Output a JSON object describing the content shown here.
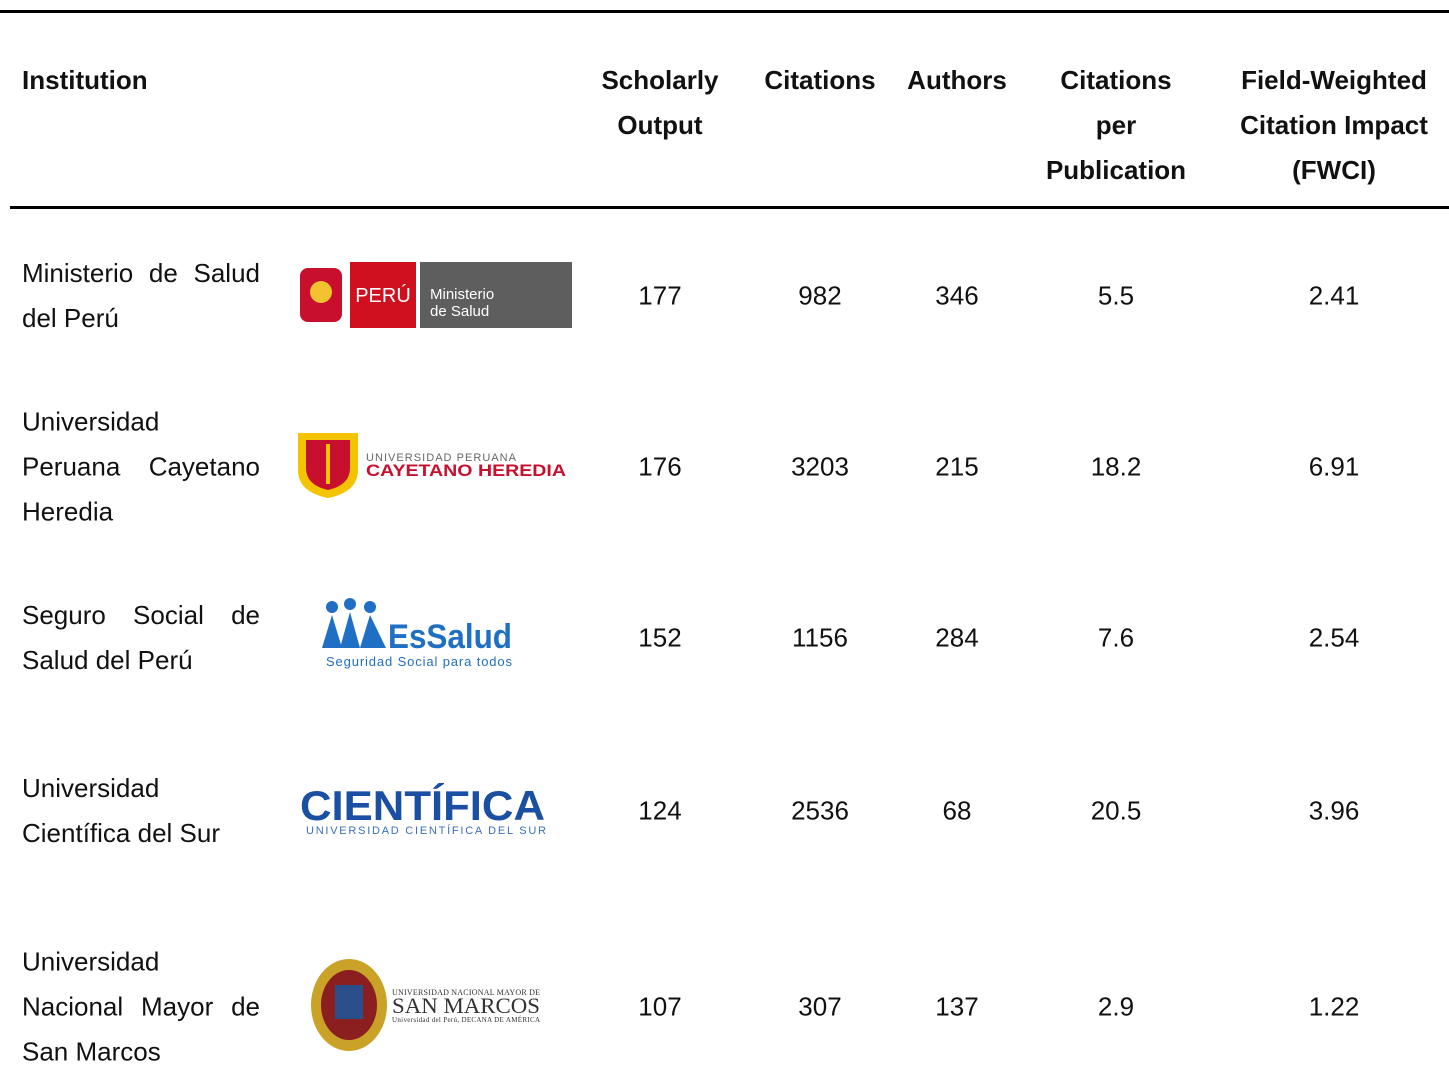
{
  "table": {
    "headers": [
      [
        "Institution"
      ],
      [
        "Scholarly",
        "Output"
      ],
      [
        "Citations"
      ],
      [
        "Authors"
      ],
      [
        "Citations",
        "per",
        "Publication"
      ],
      [
        "Field-Weighted",
        "Citation Impact",
        "(FWCI)"
      ]
    ],
    "rows": [
      {
        "institution": "Ministerio de Salud del Perú",
        "logo": [
          "PERÚ",
          "Ministerio",
          "de Salud"
        ],
        "scholarly_output": 177,
        "citations": 982,
        "authors": 346,
        "citations_per_publication": 5.5,
        "fwci": 2.41
      },
      {
        "institution": "Universidad Peruana Cayetano Heredia",
        "logo": [
          "UNIVERSIDAD PERUANA",
          "CAYETANO HEREDIA"
        ],
        "scholarly_output": 176,
        "citations": 3203,
        "authors": 215,
        "citations_per_publication": 18.2,
        "fwci": 6.91
      },
      {
        "institution": "Seguro Social de Salud del Perú",
        "logo": [
          "EsSalud",
          "Seguridad Social para todos"
        ],
        "scholarly_output": 152,
        "citations": 1156,
        "authors": 284,
        "citations_per_publication": 7.6,
        "fwci": 2.54
      },
      {
        "institution": "Universidad Científica del Sur",
        "logo": [
          "CIENTÍFICA",
          "UNIVERSIDAD CIENTÍFICA DEL SUR"
        ],
        "scholarly_output": 124,
        "citations": 2536,
        "authors": 68,
        "citations_per_publication": 20.5,
        "fwci": 3.96
      },
      {
        "institution": "Universidad Nacional Mayor de San Marcos",
        "logo": [
          "UNIVERSIDAD NACIONAL MAYOR DE",
          "SAN MARCOS",
          "Universidad del Perú, DECANA DE AMÉRICA"
        ],
        "scholarly_output": 107,
        "citations": 307,
        "authors": 137,
        "citations_per_publication": 2.9,
        "fwci": 1.22
      }
    ]
  }
}
